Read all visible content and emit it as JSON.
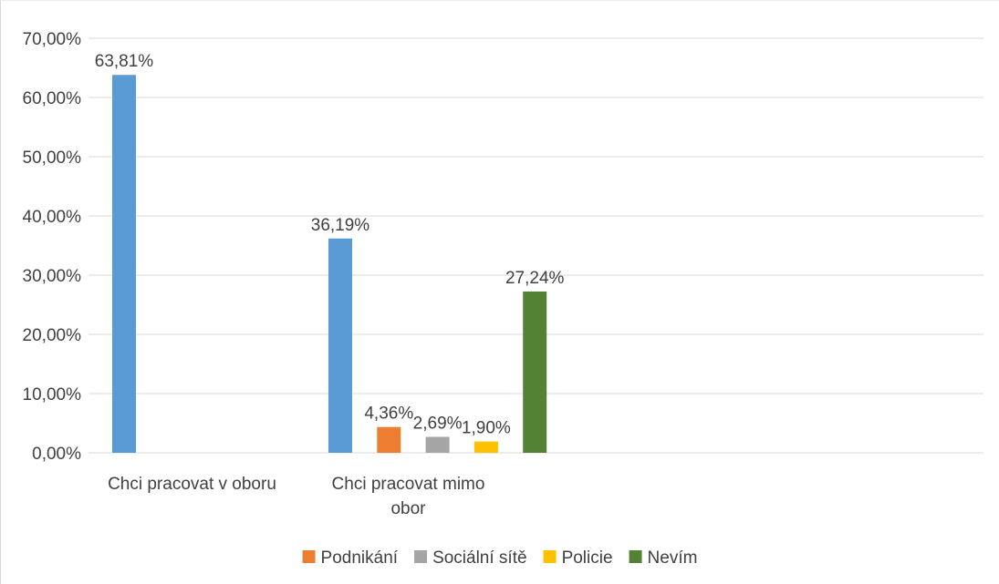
{
  "chart_data": {
    "type": "bar",
    "categories": [
      "Chci pracovat v oboru",
      "Chci pracovat mimo obor"
    ],
    "category_lines": [
      [
        "Chci pracovat v oboru"
      ],
      [
        "Chci pracovat mimo",
        "obor"
      ]
    ],
    "ylim": [
      0,
      70
    ],
    "y_ticks": [
      0,
      10,
      20,
      30,
      40,
      50,
      60,
      70
    ],
    "y_tick_labels": [
      "0,00%",
      "10,00%",
      "20,00%",
      "30,00%",
      "40,00%",
      "50,00%",
      "60,00%",
      "70,00%"
    ],
    "grid": true,
    "legend_position": "bottom",
    "series": [
      {
        "name": "",
        "color": "#5b9bd5",
        "in_legend": false,
        "values": [
          63.81,
          36.19
        ],
        "labels": [
          "63,81%",
          "36,19%"
        ]
      },
      {
        "name": "Podnikání",
        "color": "#ed7d31",
        "in_legend": true,
        "values": [
          null,
          4.36
        ],
        "labels": [
          "",
          "4,36%"
        ]
      },
      {
        "name": "Sociální sítě",
        "color": "#a5a5a5",
        "in_legend": true,
        "values": [
          null,
          2.69
        ],
        "labels": [
          "",
          "2,69%"
        ]
      },
      {
        "name": "Policie",
        "color": "#ffc000",
        "in_legend": true,
        "values": [
          null,
          1.9
        ],
        "labels": [
          "",
          "1,90%"
        ]
      },
      {
        "name": "Nevím",
        "color": "#548235",
        "in_legend": true,
        "values": [
          null,
          27.24
        ],
        "labels": [
          "",
          "27,24%"
        ]
      }
    ]
  }
}
